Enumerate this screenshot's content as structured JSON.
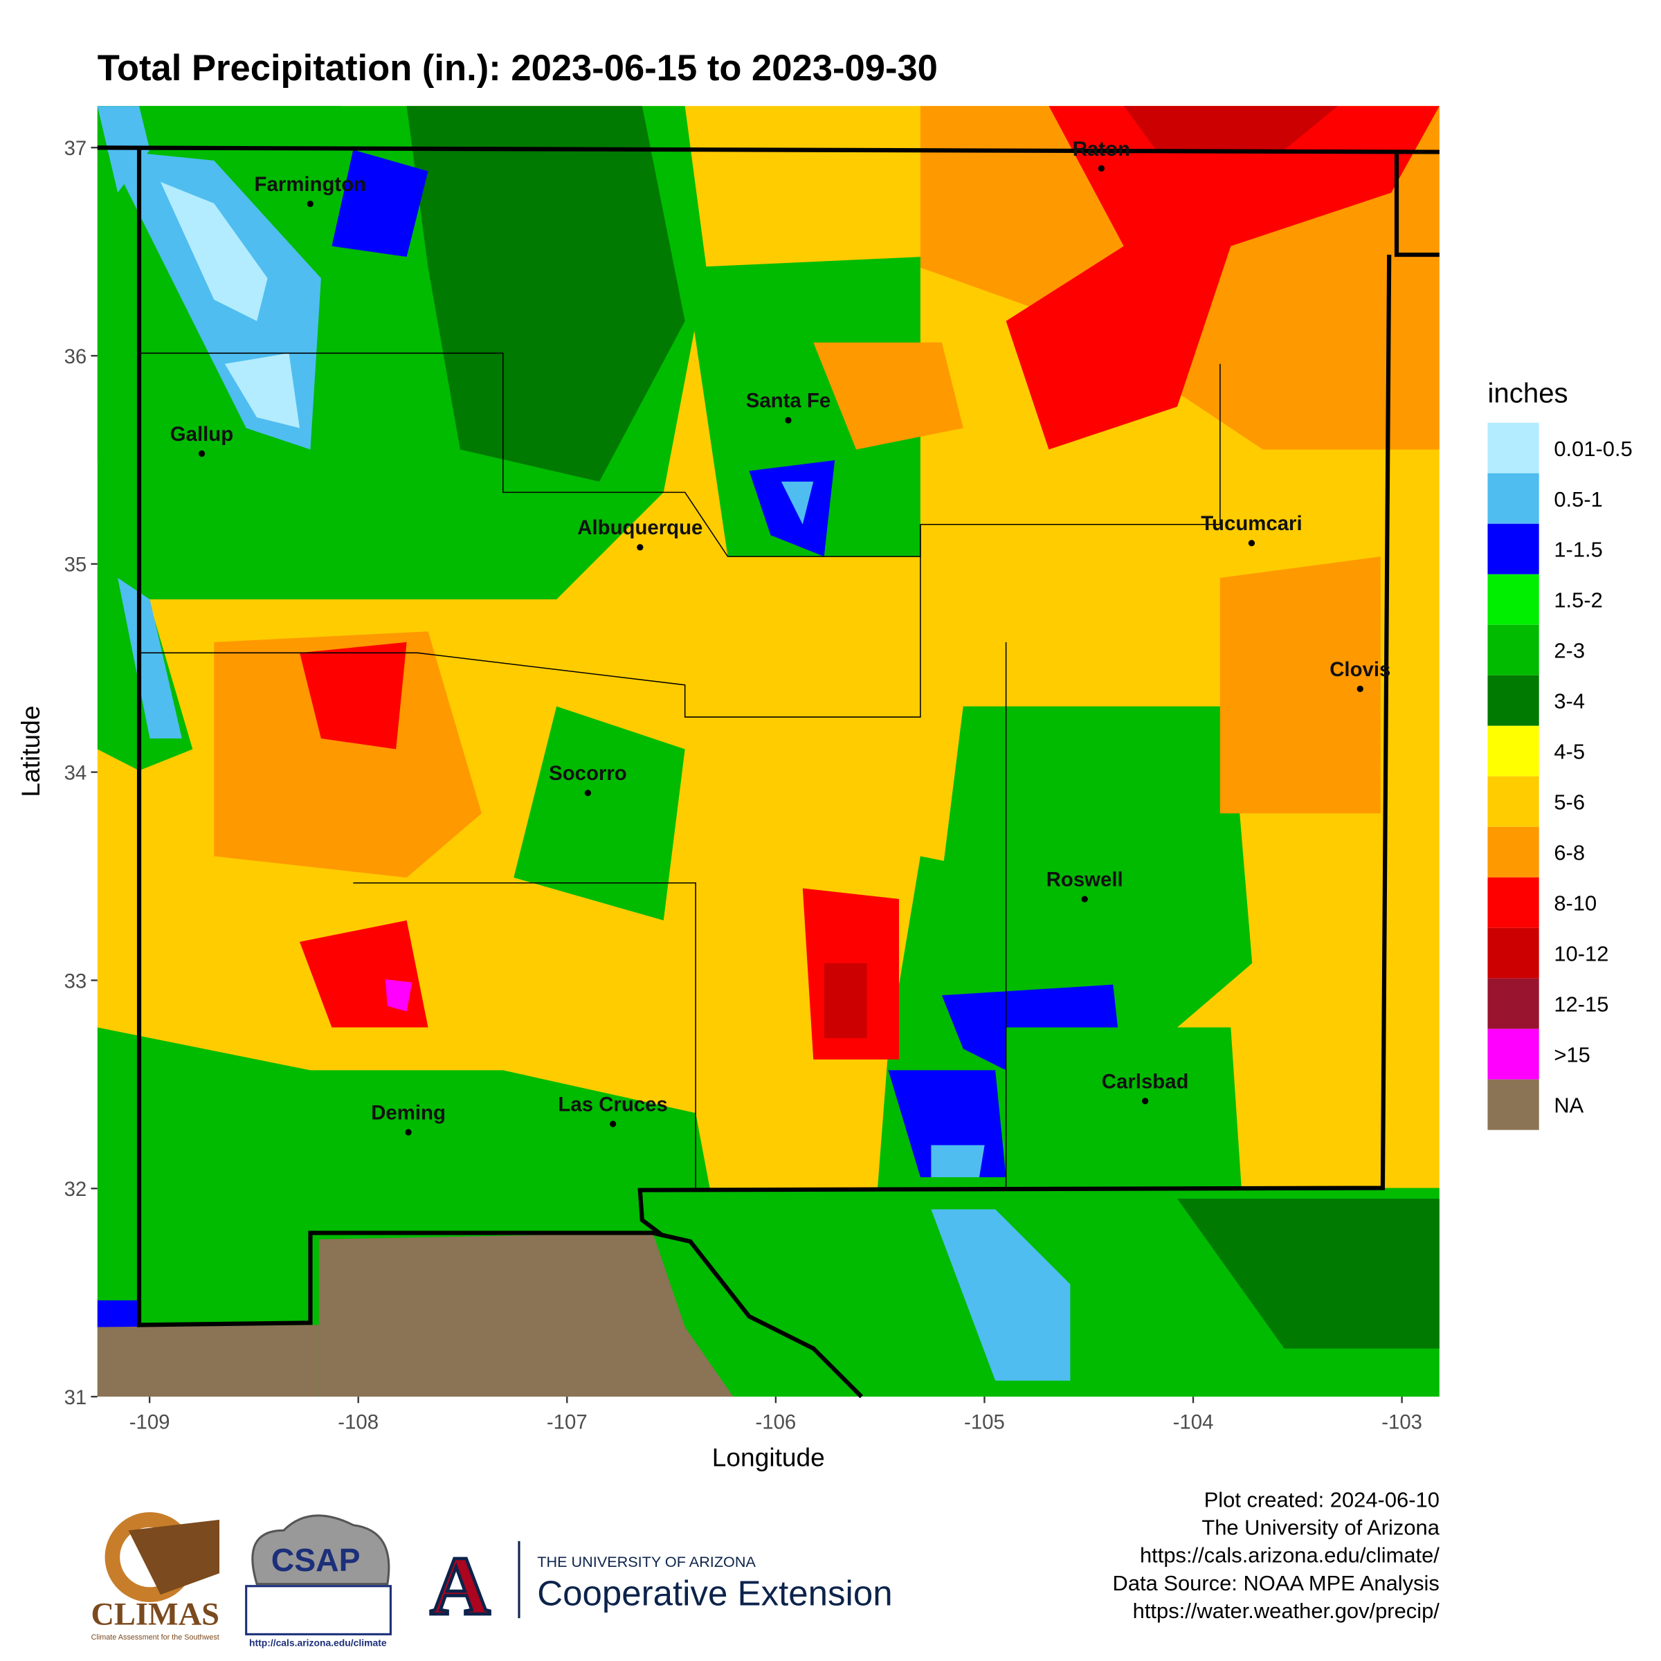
{
  "title": "Total Precipitation (in.): 2023-06-15 to 2023-09-30",
  "map": {
    "xlabel": "Longitude",
    "ylabel": "Latitude",
    "xlim": [
      -109.25,
      -102.82
    ],
    "ylim": [
      31,
      37.2
    ],
    "xticks": [
      -109,
      -108,
      -107,
      -106,
      -105,
      -104,
      -103
    ],
    "yticks": [
      31,
      32,
      33,
      34,
      35,
      36,
      37
    ],
    "cities": [
      {
        "name": "Farmington",
        "lon": -108.23,
        "lat": 36.73
      },
      {
        "name": "Raton",
        "lon": -104.44,
        "lat": 36.9
      },
      {
        "name": "Santa Fe",
        "lon": -105.94,
        "lat": 35.69
      },
      {
        "name": "Gallup",
        "lon": -108.75,
        "lat": 35.53
      },
      {
        "name": "Albuquerque",
        "lon": -106.65,
        "lat": 35.08
      },
      {
        "name": "Tucumcari",
        "lon": -103.72,
        "lat": 35.1
      },
      {
        "name": "Clovis",
        "lon": -103.2,
        "lat": 34.4
      },
      {
        "name": "Socorro",
        "lon": -106.9,
        "lat": 33.9
      },
      {
        "name": "Roswell",
        "lon": -104.52,
        "lat": 33.39
      },
      {
        "name": "Carlsbad",
        "lon": -104.23,
        "lat": 32.42
      },
      {
        "name": "Las Cruces",
        "lon": -106.78,
        "lat": 32.31
      },
      {
        "name": "Deming",
        "lon": -107.76,
        "lat": 32.27
      }
    ]
  },
  "legend": {
    "title": "inches",
    "items": [
      {
        "label": "0.01-0.5",
        "color": "#b3ecff"
      },
      {
        "label": "0.5-1",
        "color": "#4fbdf0"
      },
      {
        "label": "1-1.5",
        "color": "#0000ff"
      },
      {
        "label": "1.5-2",
        "color": "#00ee00"
      },
      {
        "label": "2-3",
        "color": "#00bb00"
      },
      {
        "label": "3-4",
        "color": "#007a00"
      },
      {
        "label": "4-5",
        "color": "#ffff00"
      },
      {
        "label": "5-6",
        "color": "#ffcc00"
      },
      {
        "label": "6-8",
        "color": "#ff9900"
      },
      {
        "label": "8-10",
        "color": "#ff0000"
      },
      {
        "label": "10-12",
        "color": "#cc0000"
      },
      {
        "label": "12-15",
        "color": "#99142f"
      },
      {
        "label": ">15",
        "color": "#ff00ff"
      },
      {
        "label": "NA",
        "color": "#8b7355"
      }
    ]
  },
  "footer": [
    "Plot created: 2024-06-10",
    "The University of Arizona",
    "https://cals.arizona.edu/climate/",
    "Data Source: NOAA MPE Analysis",
    "https://water.weather.gov/precip/"
  ],
  "logos": {
    "climas": "CLIMAS",
    "climas_sub": "Climate Assessment for the Southwest",
    "csap": "CSAP",
    "csap_url": "http://cals.arizona.edu/climate",
    "ua": "THE UNIVERSITY OF ARIZONA",
    "coop": "Cooperative Extension"
  }
}
